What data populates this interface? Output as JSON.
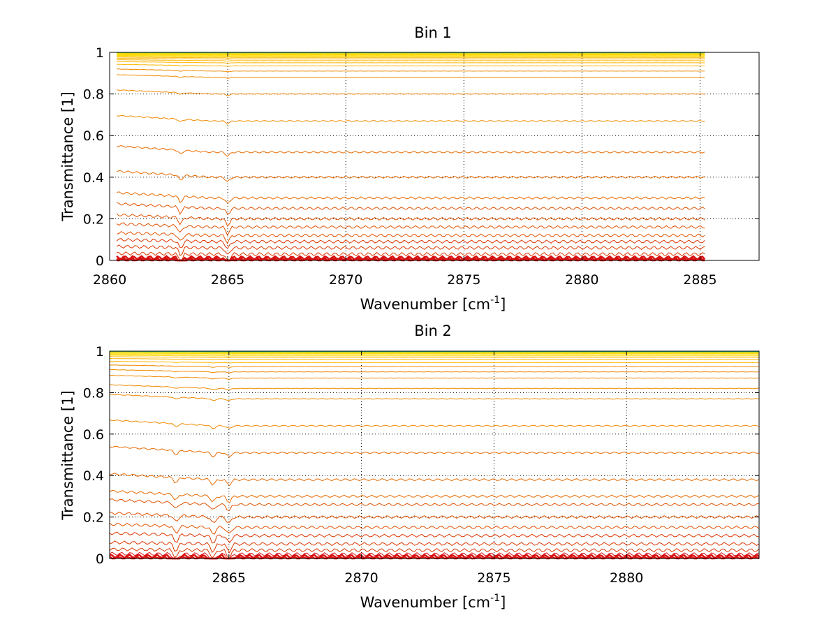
{
  "chart_data": [
    {
      "type": "line",
      "title": "Bin 1",
      "xlabel": "Wavenumber [cm",
      "xlabel_sup": "-1",
      "xlabel_close": "]",
      "ylabel": "Transmittance [1]",
      "xlim": [
        2860,
        2887.5
      ],
      "ylim": [
        0,
        1
      ],
      "xticks": [
        "2860",
        "2865",
        "2870",
        "2875",
        "2880",
        "2885"
      ],
      "yticks": [
        "0",
        "0.2",
        "0.4",
        "0.6",
        "0.8",
        "1"
      ],
      "grid": true,
      "x_range": [
        2860.3,
        2885.2
      ],
      "dip_positions": [
        2863.0,
        2865.0
      ],
      "levels": [
        1.0,
        0.998,
        0.996,
        0.993,
        0.99,
        0.987,
        0.983,
        0.979,
        0.974,
        0.968,
        0.96,
        0.95,
        0.935,
        0.91,
        0.88,
        0.8,
        0.67,
        0.52,
        0.4,
        0.3,
        0.25,
        0.2,
        0.16,
        0.12,
        0.09,
        0.06,
        0.03,
        0.012,
        0.005,
        0.0
      ]
    },
    {
      "type": "line",
      "title": "Bin 2",
      "xlabel": "Wavenumber [cm",
      "xlabel_sup": "-1",
      "xlabel_close": "]",
      "ylabel": "Transmittance [1]",
      "xlim": [
        2860.5,
        2885
      ],
      "ylim": [
        0,
        1
      ],
      "xticks": [
        "2865",
        "2870",
        "2875",
        "2880"
      ],
      "yticks": [
        "0",
        "0.2",
        "0.4",
        "0.6",
        "0.8",
        "1"
      ],
      "grid": true,
      "x_range": [
        2860.5,
        2885.0
      ],
      "dip_positions": [
        2863.0,
        2864.4,
        2865.0
      ],
      "levels": [
        1.0,
        0.998,
        0.995,
        0.992,
        0.988,
        0.983,
        0.977,
        0.97,
        0.96,
        0.945,
        0.925,
        0.9,
        0.87,
        0.82,
        0.77,
        0.64,
        0.51,
        0.38,
        0.3,
        0.26,
        0.2,
        0.15,
        0.11,
        0.07,
        0.04,
        0.02,
        0.01,
        0.0
      ]
    }
  ]
}
